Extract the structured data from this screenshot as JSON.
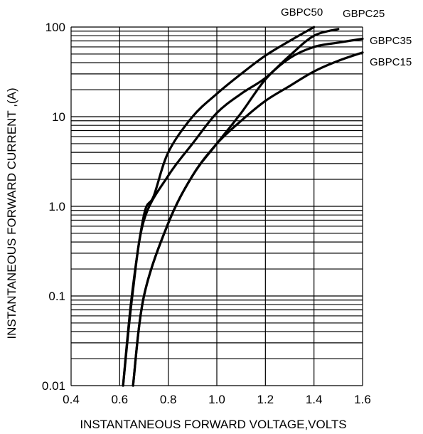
{
  "chart_data": {
    "type": "line",
    "title": "",
    "xlabel": "INSTANTANEOUS FORWARD VOLTAGE,VOLTS",
    "ylabel": "INSTANTANEOUS  FORWARD  CURRENT ,(A)",
    "xlim": [
      0.4,
      1.6
    ],
    "ylim": [
      0.01,
      100
    ],
    "yscale": "log",
    "grid": true,
    "x_ticks": [
      "0.4",
      "0.6",
      "0.8",
      "1.0",
      "1.2",
      "1.4",
      "1.6"
    ],
    "y_ticks": [
      "0.01",
      "0.1",
      "1.0",
      "10",
      "100"
    ],
    "series": [
      {
        "name": "GBPC50",
        "points": [
          [
            0.614,
            0.01
          ],
          [
            0.65,
            0.1
          ],
          [
            0.7,
            0.8
          ],
          [
            0.74,
            1.3
          ],
          [
            0.8,
            4
          ],
          [
            0.9,
            10
          ],
          [
            1.0,
            18
          ],
          [
            1.1,
            30
          ],
          [
            1.2,
            48
          ],
          [
            1.3,
            70
          ],
          [
            1.4,
            100
          ]
        ]
      },
      {
        "name": "GBPC25",
        "points": [
          [
            0.614,
            0.01
          ],
          [
            0.652,
            0.1
          ],
          [
            0.7,
            0.7
          ],
          [
            0.8,
            2.2
          ],
          [
            0.9,
            5
          ],
          [
            1.0,
            11
          ],
          [
            1.1,
            18
          ],
          [
            1.2,
            27
          ],
          [
            1.3,
            48
          ],
          [
            1.4,
            80
          ],
          [
            1.5,
            95
          ]
        ]
      },
      {
        "name": "GBPC35",
        "points": [
          [
            0.655,
            0.01
          ],
          [
            0.7,
            0.1
          ],
          [
            0.8,
            0.65
          ],
          [
            0.9,
            2.2
          ],
          [
            1.0,
            5
          ],
          [
            1.1,
            11
          ],
          [
            1.2,
            26
          ],
          [
            1.3,
            45
          ],
          [
            1.4,
            60
          ],
          [
            1.5,
            67
          ],
          [
            1.6,
            74
          ]
        ]
      },
      {
        "name": "GBPC15",
        "points": [
          [
            0.655,
            0.01
          ],
          [
            0.7,
            0.1
          ],
          [
            0.8,
            0.65
          ],
          [
            0.9,
            2.2
          ],
          [
            1.0,
            5
          ],
          [
            1.1,
            9
          ],
          [
            1.2,
            15
          ],
          [
            1.3,
            22
          ],
          [
            1.4,
            32
          ],
          [
            1.5,
            42
          ],
          [
            1.6,
            52
          ]
        ]
      }
    ]
  }
}
